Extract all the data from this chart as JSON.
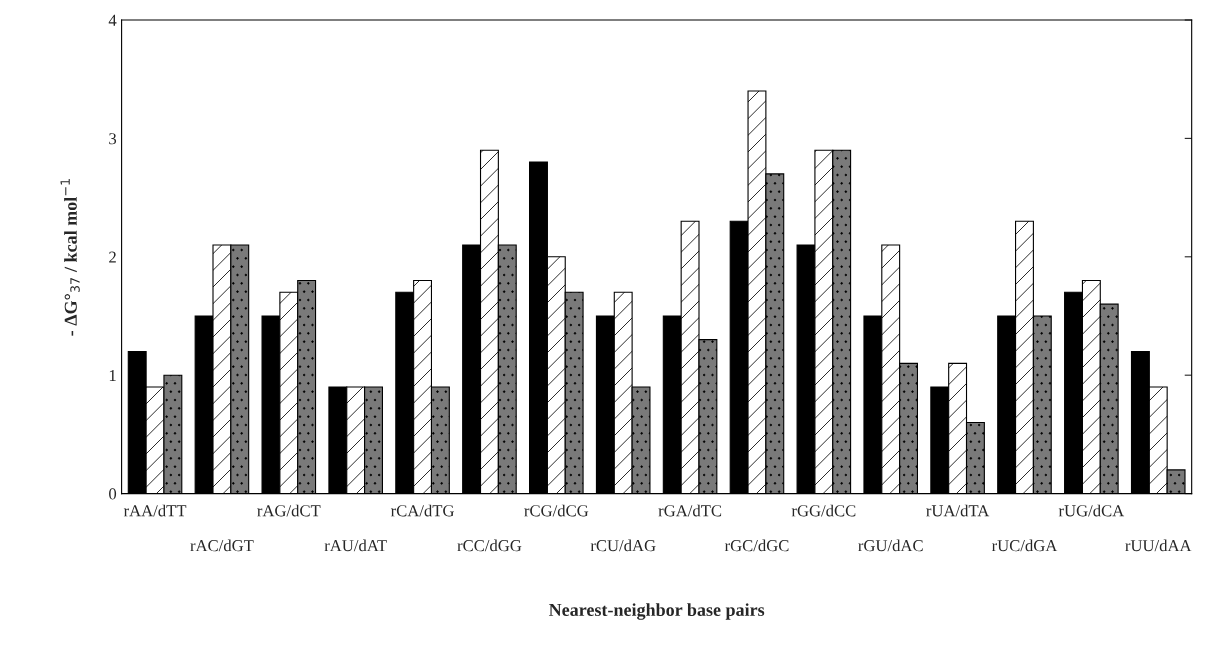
{
  "chart_data": {
    "type": "bar",
    "xlabel": "Nearest-neighbor base pairs",
    "ylabel": "- ΔG°$_{37}$ / kcal mol$^{−1}$",
    "categories": [
      "rAA/dTT",
      "rAC/dGT",
      "rAG/dCT",
      "rAU/dAT",
      "rCA/dTG",
      "rCC/dGG",
      "rCG/dCG",
      "rCU/dAG",
      "rGA/dTC",
      "rGC/dGC",
      "rGG/dCC",
      "rGU/dAC",
      "rUA/dTA",
      "rUC/dGA",
      "rUG/dCA",
      "rUU/dAA"
    ],
    "series": [
      {
        "color": "#000000",
        "values": [
          1.2,
          1.5,
          1.5,
          0.9,
          1.7,
          2.1,
          2.8,
          1.5,
          1.5,
          2.3,
          2.1,
          1.5,
          0.9,
          1.5,
          1.7,
          1.2
        ]
      },
      {
        "color": "#ffffff",
        "values": [
          0.9,
          2.1,
          1.7,
          0.9,
          1.8,
          2.9,
          2.0,
          1.7,
          2.3,
          3.4,
          2.9,
          2.1,
          1.1,
          2.3,
          1.8,
          0.9
        ]
      },
      {
        "color": "#7a7a7a",
        "values": [
          1.0,
          2.1,
          1.8,
          0.9,
          0.9,
          2.1,
          1.7,
          0.9,
          1.3,
          2.7,
          2.9,
          1.1,
          0.6,
          1.5,
          1.6,
          0.2
        ]
      }
    ],
    "ylim": [
      0,
      4
    ],
    "yticks": [
      0,
      1,
      2,
      3,
      4
    ],
    "grid": false,
    "legend": false
  }
}
